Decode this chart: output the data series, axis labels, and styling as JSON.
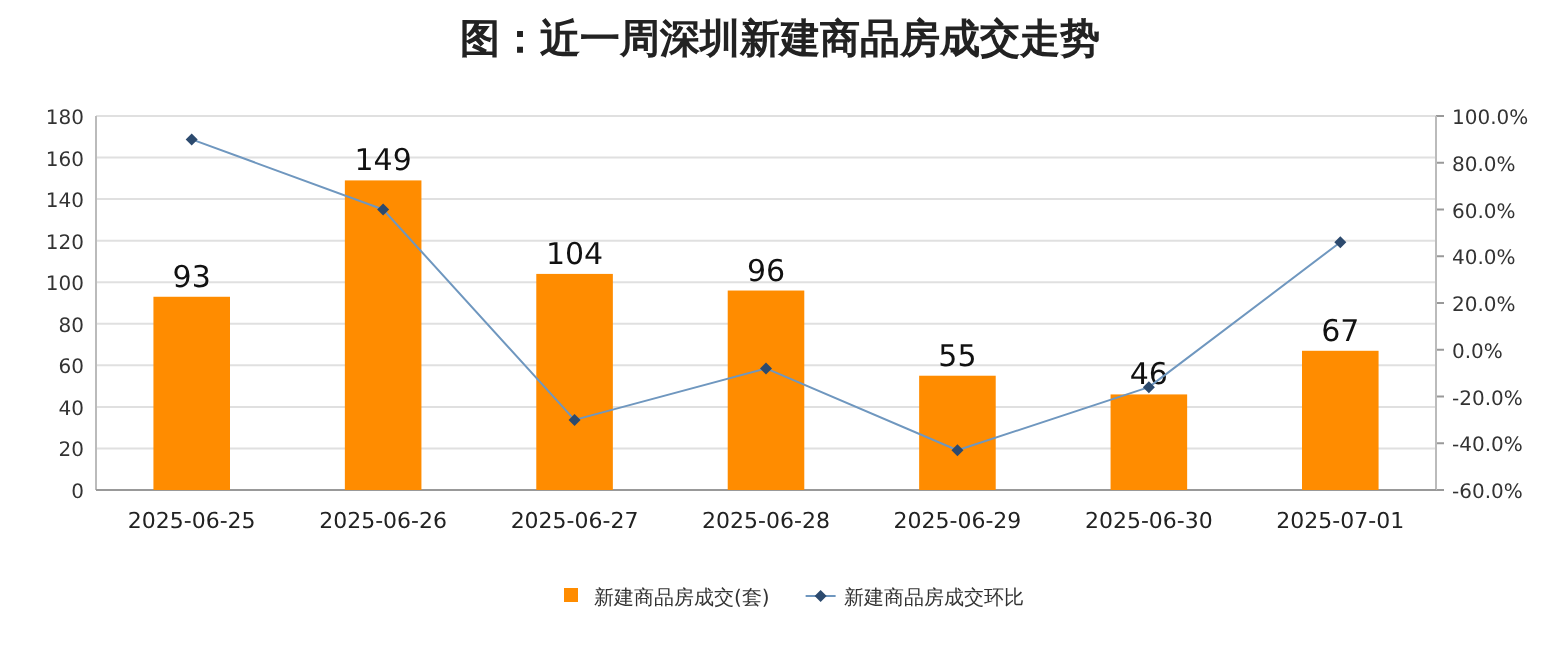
{
  "chart_data": {
    "type": "bar",
    "title": "图：近一周深圳新建商品房成交走势",
    "categories": [
      "2025-06-25",
      "2025-06-26",
      "2025-06-27",
      "2025-06-28",
      "2025-06-29",
      "2025-06-30",
      "2025-07-01"
    ],
    "series": [
      {
        "name": "新建商品房成交(套)",
        "color": "#ff8c00",
        "values": [
          93,
          149,
          104,
          96,
          55,
          46,
          67
        ],
        "value_labels": [
          "93",
          "149",
          "104",
          "96",
          "55",
          "46",
          "67"
        ]
      },
      {
        "name": "新建商品房成交环比",
        "type": "line",
        "axis": "y2",
        "color": "#6f97bf",
        "marker": "diamond",
        "values": [
          90,
          60,
          -30,
          -8,
          -43,
          -16,
          46
        ]
      }
    ],
    "ylim": [
      0,
      180
    ],
    "yticks": [
      0,
      20,
      40,
      60,
      80,
      100,
      120,
      140,
      160,
      180
    ],
    "y2lim": [
      -60,
      100
    ],
    "y2ticks": [
      {
        "value": -60,
        "label": "-60.0%"
      },
      {
        "value": -40,
        "label": "-40.0%"
      },
      {
        "value": -20,
        "label": "-20.0%"
      },
      {
        "value": 0,
        "label": "0.0%"
      },
      {
        "value": 20,
        "label": "20.0%"
      },
      {
        "value": 40,
        "label": "40.0%"
      },
      {
        "value": 60,
        "label": "60.0%"
      },
      {
        "value": 80,
        "label": "80.0%"
      },
      {
        "value": 100,
        "label": "100.0%"
      }
    ],
    "grid": "y",
    "legend": "bottom"
  }
}
